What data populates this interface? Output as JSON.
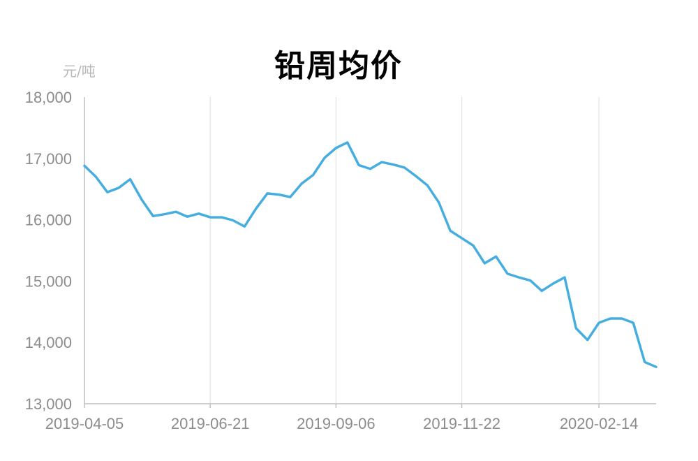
{
  "chart_data": {
    "type": "line",
    "title": "铅周均价",
    "y_unit": "元/吨",
    "xlabel": "",
    "ylabel": "",
    "ylim": [
      13000,
      18000
    ],
    "y_ticks": [
      "13,000",
      "14,000",
      "15,000",
      "16,000",
      "17,000",
      "18,000"
    ],
    "y_tick_values": [
      13000,
      14000,
      15000,
      16000,
      17000,
      18000
    ],
    "x_tick_labels": [
      "2019-04-05",
      "2019-06-21",
      "2019-09-06",
      "2019-11-22",
      "2020-02-14"
    ],
    "x_tick_indices": [
      0,
      11,
      22,
      33,
      45
    ],
    "grid": "vertical",
    "line_color": "#45ade0",
    "series": [
      {
        "values": [
          16880,
          16700,
          16450,
          16520,
          16660,
          16330,
          16060,
          16090,
          16130,
          16050,
          16100,
          16040,
          16040,
          15990,
          15890,
          16180,
          16430,
          16410,
          16370,
          16590,
          16730,
          17010,
          17170,
          17260,
          16890,
          16830,
          16940,
          16900,
          16850,
          16710,
          16560,
          16280,
          15820,
          15700,
          15580,
          15290,
          15400,
          15120,
          15060,
          15010,
          14840,
          14960,
          15060,
          14230,
          14040,
          14320,
          14390,
          14390,
          14320,
          13680,
          13600
        ]
      }
    ]
  }
}
